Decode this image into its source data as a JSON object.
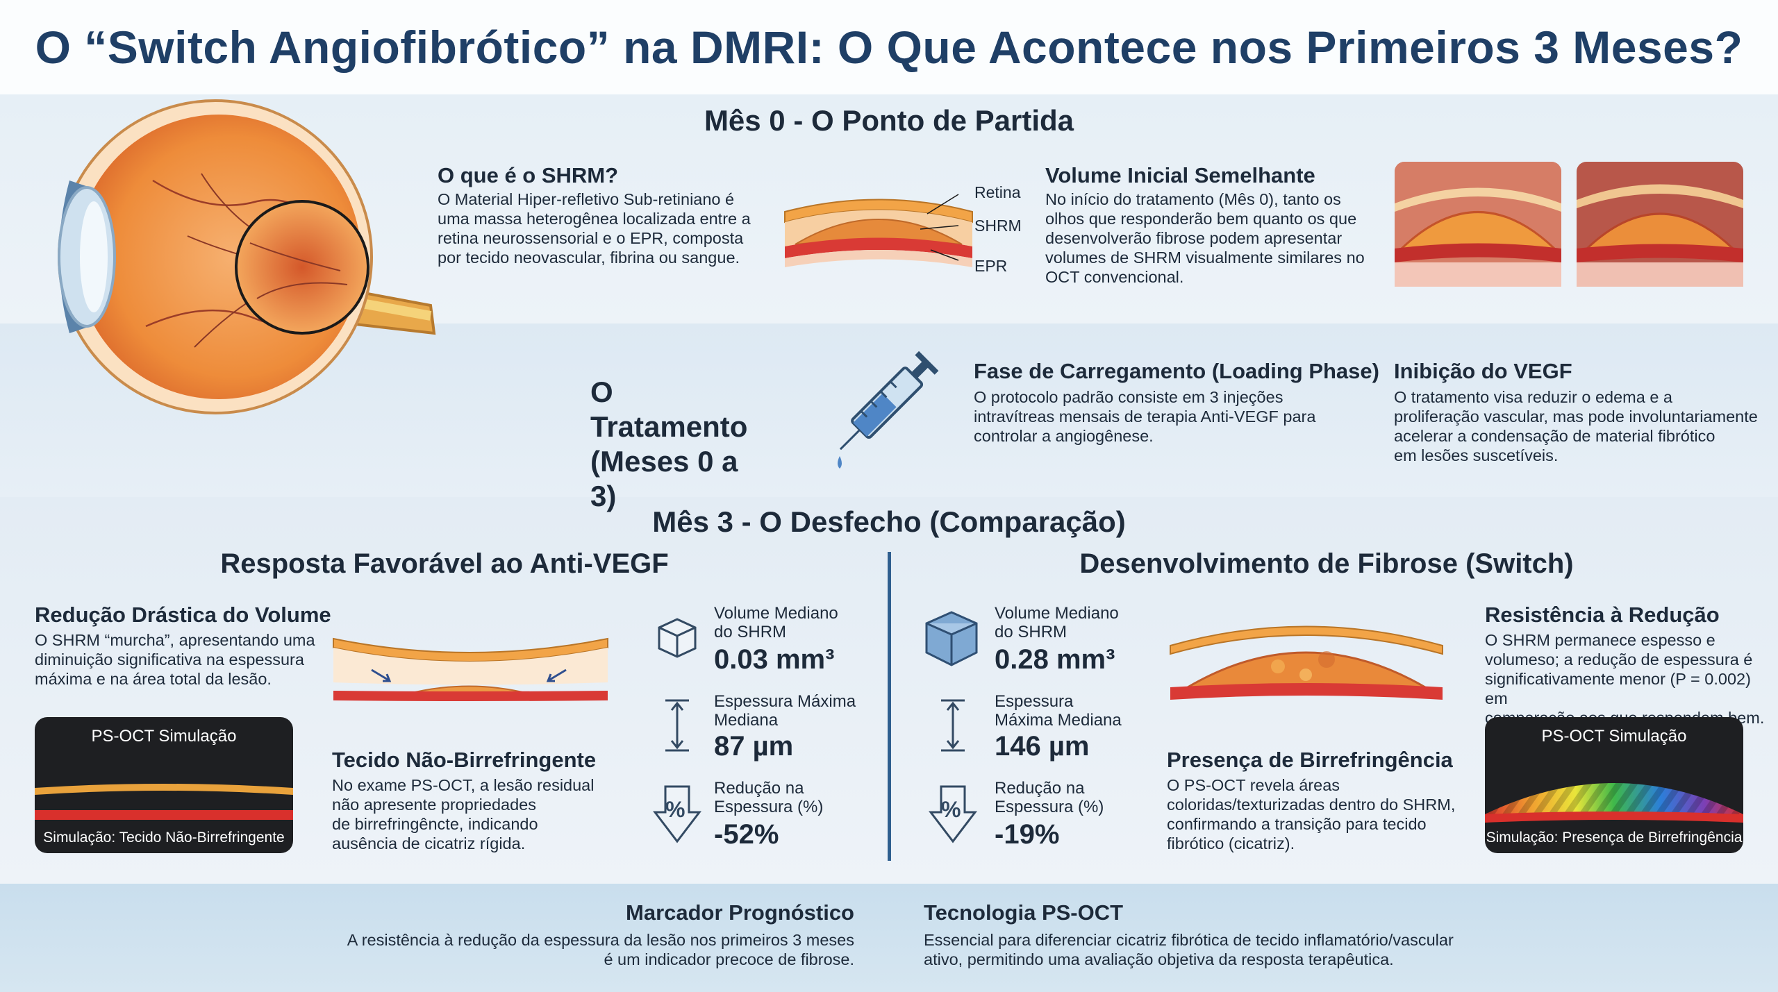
{
  "title": "O “Switch Angiofibrótico” na DMRI: O Que Acontece nos Primeiros 3 Meses?",
  "month0": {
    "heading": "Mês 0 - O Ponto de Partida",
    "shrm_title": "O que é o SHRM?",
    "shrm_text": [
      "O Material Hiper-refletivo Sub-retiniano é",
      "uma massa heterogênea localizada entre a",
      "retina neurossensorial e o EPR, composta",
      "por tecido neovascular, fibrina ou sangue."
    ],
    "diagram_labels": {
      "retina": "Retina",
      "shrm": "SHRM",
      "epr": "EPR"
    },
    "volume_title": "Volume Inicial Semelhante",
    "volume_text": [
      "No início do tratamento (Mês 0), tanto os",
      "olhos que responderão bem quanto os que",
      "desenvolverão fibrose podem apresentar",
      "volumes de SHRM visualmente similares no",
      "OCT convencional."
    ]
  },
  "treatment": {
    "heading_line1": "O Tratamento",
    "heading_line2": "(Meses 0 a 3)",
    "loading_title": "Fase de Carregamento (Loading Phase)",
    "loading_text": [
      "O protocolo padrão consiste em 3 injeções",
      "intravítreas mensais de terapia Anti-VEGF para",
      "controlar a angiogênese."
    ],
    "vegf_title": "Inibição do VEGF",
    "vegf_text": [
      "O tratamento visa reduzir o edema e a",
      "proliferação vascular, mas pode involuntariamente",
      "acelerar a condensação de material fibrótico",
      "em lesões suscetíveis."
    ]
  },
  "month3": {
    "heading": "Mês 3 - O Desfecho (Comparação)",
    "favorable": {
      "heading": "Resposta Favorável ao Anti-VEGF",
      "reduction_title": "Redução Drástica do Volume",
      "reduction_text": [
        "O SHRM “murcha”, apresentando uma",
        "diminuição significativa na espessura",
        "máxima e na área total da lesão."
      ],
      "sim_title": "PS-OCT Simulação",
      "sim_caption": "Simulação: Tecido Não-Birrefringente",
      "tissue_title": "Tecido Não-Birrefringente",
      "tissue_text": [
        "No exame PS-OCT, a lesão residual",
        "não apresente propriedades",
        "de birrefringêncte, indicando",
        "ausência de cicatriz rígida."
      ],
      "stats": [
        {
          "label": [
            "Volume Mediano",
            "do SHRM"
          ],
          "value": "0.03 mm³"
        },
        {
          "label": [
            "Espessura Máxima",
            "Mediana"
          ],
          "value": "87 µm"
        },
        {
          "label": [
            "Redução na",
            "Espessura (%)"
          ],
          "value": "-52%"
        }
      ]
    },
    "fibrosis": {
      "heading": "Desenvolvimento de Fibrose (Switch)",
      "stats": [
        {
          "label": [
            "Volume Mediano",
            "do SHRM"
          ],
          "value": "0.28 mm³"
        },
        {
          "label": [
            "Espessura",
            "Máxima Mediana"
          ],
          "value": "146 µm"
        },
        {
          "label": [
            "Redução na",
            "Espessura (%)"
          ],
          "value": "-19%"
        }
      ],
      "birefringence_title": "Presença de Birrefringência",
      "birefringence_text": [
        "O PS-OCT revela áreas",
        "coloridas/texturizadas dentro do SHRM,",
        "confirmando a transição para tecido",
        "fibrótico (cicatriz)."
      ],
      "resistance_title": "Resistência à Redução",
      "resistance_text": [
        "O SHRM permanece espesso e",
        "volumeso; a redução de espessura é",
        "significativamente menor (P = 0.002) em",
        "comparação aos que respondem bem."
      ],
      "sim_title": "PS-OCT Simulação",
      "sim_caption": "Simulação: Presença de Birrefringência"
    },
    "percent_symbol": "%"
  },
  "footer": {
    "marker_title": "Marcador Prognóstico",
    "marker_text": [
      "A resistência à redução da espessura da lesão nos primeiros 3 meses",
      "é um indicador precoce de fibrose."
    ],
    "tech_title": "Tecnologia PS-OCT",
    "tech_text": [
      "Essencial para diferenciar cicatriz fibrótica de tecido inflamatório/vascular",
      "ativo, permitindo uma avaliação objetiva da resposta terapêutica."
    ]
  },
  "colors": {
    "title": "#1f3f66",
    "orange": "#e8892f",
    "red": "#d93a35",
    "divider": "#2f5f8f"
  }
}
